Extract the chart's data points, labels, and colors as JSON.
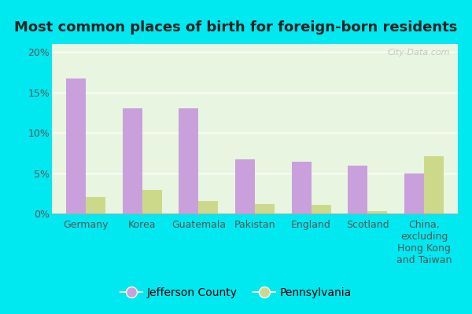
{
  "title": "Most common places of birth for foreign-born residents",
  "categories": [
    "Germany",
    "Korea",
    "Guatemala",
    "Pakistan",
    "England",
    "Scotland",
    "China,\nexcluding\nHong Kong\nand Taiwan"
  ],
  "jefferson_county": [
    16.7,
    13.0,
    13.0,
    6.7,
    6.4,
    5.9,
    5.0
  ],
  "pennsylvania": [
    2.0,
    2.9,
    1.6,
    1.2,
    1.1,
    0.3,
    7.1
  ],
  "jefferson_color": "#c9a0dc",
  "pennsylvania_color": "#ccd98a",
  "bar_width": 0.35,
  "ylim": [
    0,
    21
  ],
  "yticks": [
    0,
    5,
    10,
    15,
    20
  ],
  "ytick_labels": [
    "0%",
    "5%",
    "10%",
    "15%",
    "20%"
  ],
  "background_outer": "#00e8f0",
  "background_inner": "#e8f5e0",
  "legend_labels": [
    "Jefferson County",
    "Pennsylvania"
  ],
  "watermark": "City-Data.com",
  "title_fontsize": 13,
  "axis_fontsize": 9,
  "legend_fontsize": 10
}
